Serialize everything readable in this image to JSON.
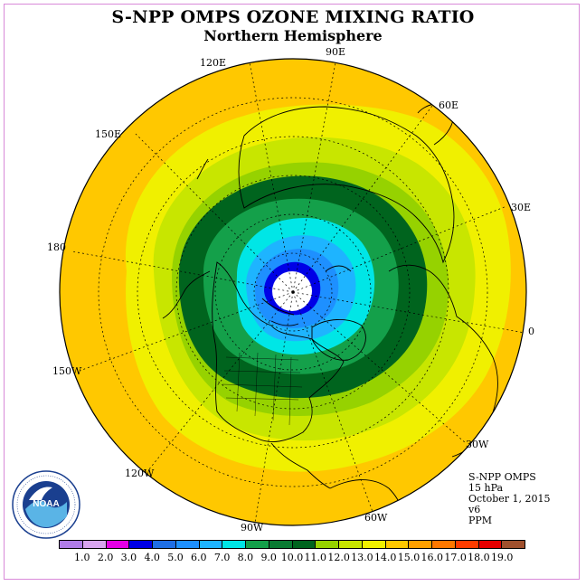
{
  "title": "S-NPP OMPS OZONE MIXING RATIO",
  "subtitle": "Northern Hemisphere",
  "longitudes": {
    "l90e": "90E",
    "l120e": "120E",
    "l60e": "60E",
    "l150e": "150E",
    "l30e": "30E",
    "l180": "180",
    "l0": "0",
    "l150w": "150W",
    "l30w": "30W",
    "l120w": "120W",
    "l60w": "60W",
    "l90w": "90W"
  },
  "info": {
    "instrument": "S-NPP OMPS",
    "level": "15 hPa",
    "date": "October 1, 2015",
    "version": "v6",
    "units": "PPM"
  },
  "logo_text": "NOAA",
  "colorbar": {
    "colors": [
      "#b07ce8",
      "#d9a5f0",
      "#e600e6",
      "#0000e6",
      "#1f6fe6",
      "#1e90ff",
      "#1eb4ff",
      "#00e6e6",
      "#14a04a",
      "#0a7a32",
      "#00641e",
      "#96d200",
      "#c8e600",
      "#f0f000",
      "#ffc800",
      "#ffa000",
      "#ff7800",
      "#ff3c00",
      "#e60000",
      "#a0502d"
    ],
    "ticks": [
      "1.0",
      "2.0",
      "3.0",
      "4.0",
      "5.0",
      "6.0",
      "7.0",
      "8.0",
      "9.0",
      "10.0",
      "11.0",
      "12.0",
      "13.0",
      "14.0",
      "15.0",
      "16.0",
      "17.0",
      "18.0",
      "19.0"
    ]
  }
}
